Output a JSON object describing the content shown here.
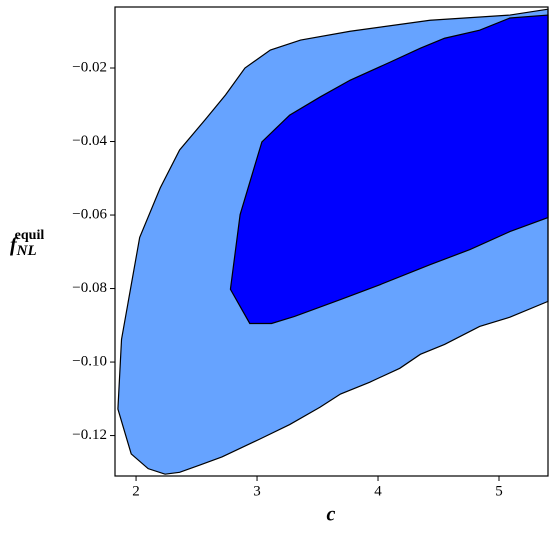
{
  "chart_data": {
    "type": "contour",
    "xlabel": "c",
    "ylabel": {
      "base": "f",
      "subscript": "NL",
      "superscript": "equil"
    },
    "xlim": [
      1.826,
      5.405
    ],
    "ylim": [
      -0.131,
      -0.0034
    ],
    "xticks": [
      2,
      3,
      4,
      5
    ],
    "yticks": [
      {
        "value": -0.02,
        "label": "−0.02"
      },
      {
        "value": -0.04,
        "label": "−0.04"
      },
      {
        "value": -0.06,
        "label": "−0.06"
      },
      {
        "value": -0.08,
        "label": "−0.08"
      },
      {
        "value": -0.1,
        "label": "−0.10"
      },
      {
        "value": -0.12,
        "label": "−0.12"
      }
    ],
    "series": [
      {
        "color": "#66a3ff",
        "x": [
          5.405,
          5.09,
          4.43,
          3.77,
          3.36,
          3.11,
          2.9,
          2.74,
          2.57,
          2.36,
          2.2,
          2.03,
          1.88,
          1.85,
          1.96,
          2.1,
          2.24,
          2.36,
          2.53,
          2.71,
          3.02,
          3.27,
          3.52,
          3.69,
          3.93,
          4.18,
          4.35,
          4.55,
          4.84,
          5.09,
          5.405
        ],
        "y": [
          -0.004,
          -0.0056,
          -0.007,
          -0.01,
          -0.0124,
          -0.0151,
          -0.02,
          -0.0273,
          -0.0341,
          -0.0423,
          -0.0526,
          -0.0661,
          -0.0938,
          -0.1128,
          -0.125,
          -0.129,
          -0.1305,
          -0.13,
          -0.128,
          -0.1258,
          -0.121,
          -0.117,
          -0.1123,
          -0.1087,
          -0.1055,
          -0.1017,
          -0.0979,
          -0.0952,
          -0.0903,
          -0.0878,
          -0.0835
        ]
      },
      {
        "color": "#0000ff",
        "x": [
          5.405,
          5.09,
          4.84,
          4.55,
          4.35,
          4.1,
          3.77,
          3.52,
          3.27,
          3.04,
          2.86,
          2.78,
          2.94,
          3.12,
          3.31,
          3.69,
          4.02,
          4.43,
          4.76,
          5.09,
          5.405
        ],
        "y": [
          -0.0056,
          -0.0064,
          -0.0097,
          -0.0119,
          -0.0146,
          -0.0184,
          -0.0233,
          -0.0279,
          -0.0328,
          -0.0401,
          -0.0599,
          -0.0802,
          -0.0895,
          -0.0895,
          -0.0876,
          -0.083,
          -0.0789,
          -0.0735,
          -0.0694,
          -0.0645,
          -0.0607
        ]
      }
    ]
  }
}
